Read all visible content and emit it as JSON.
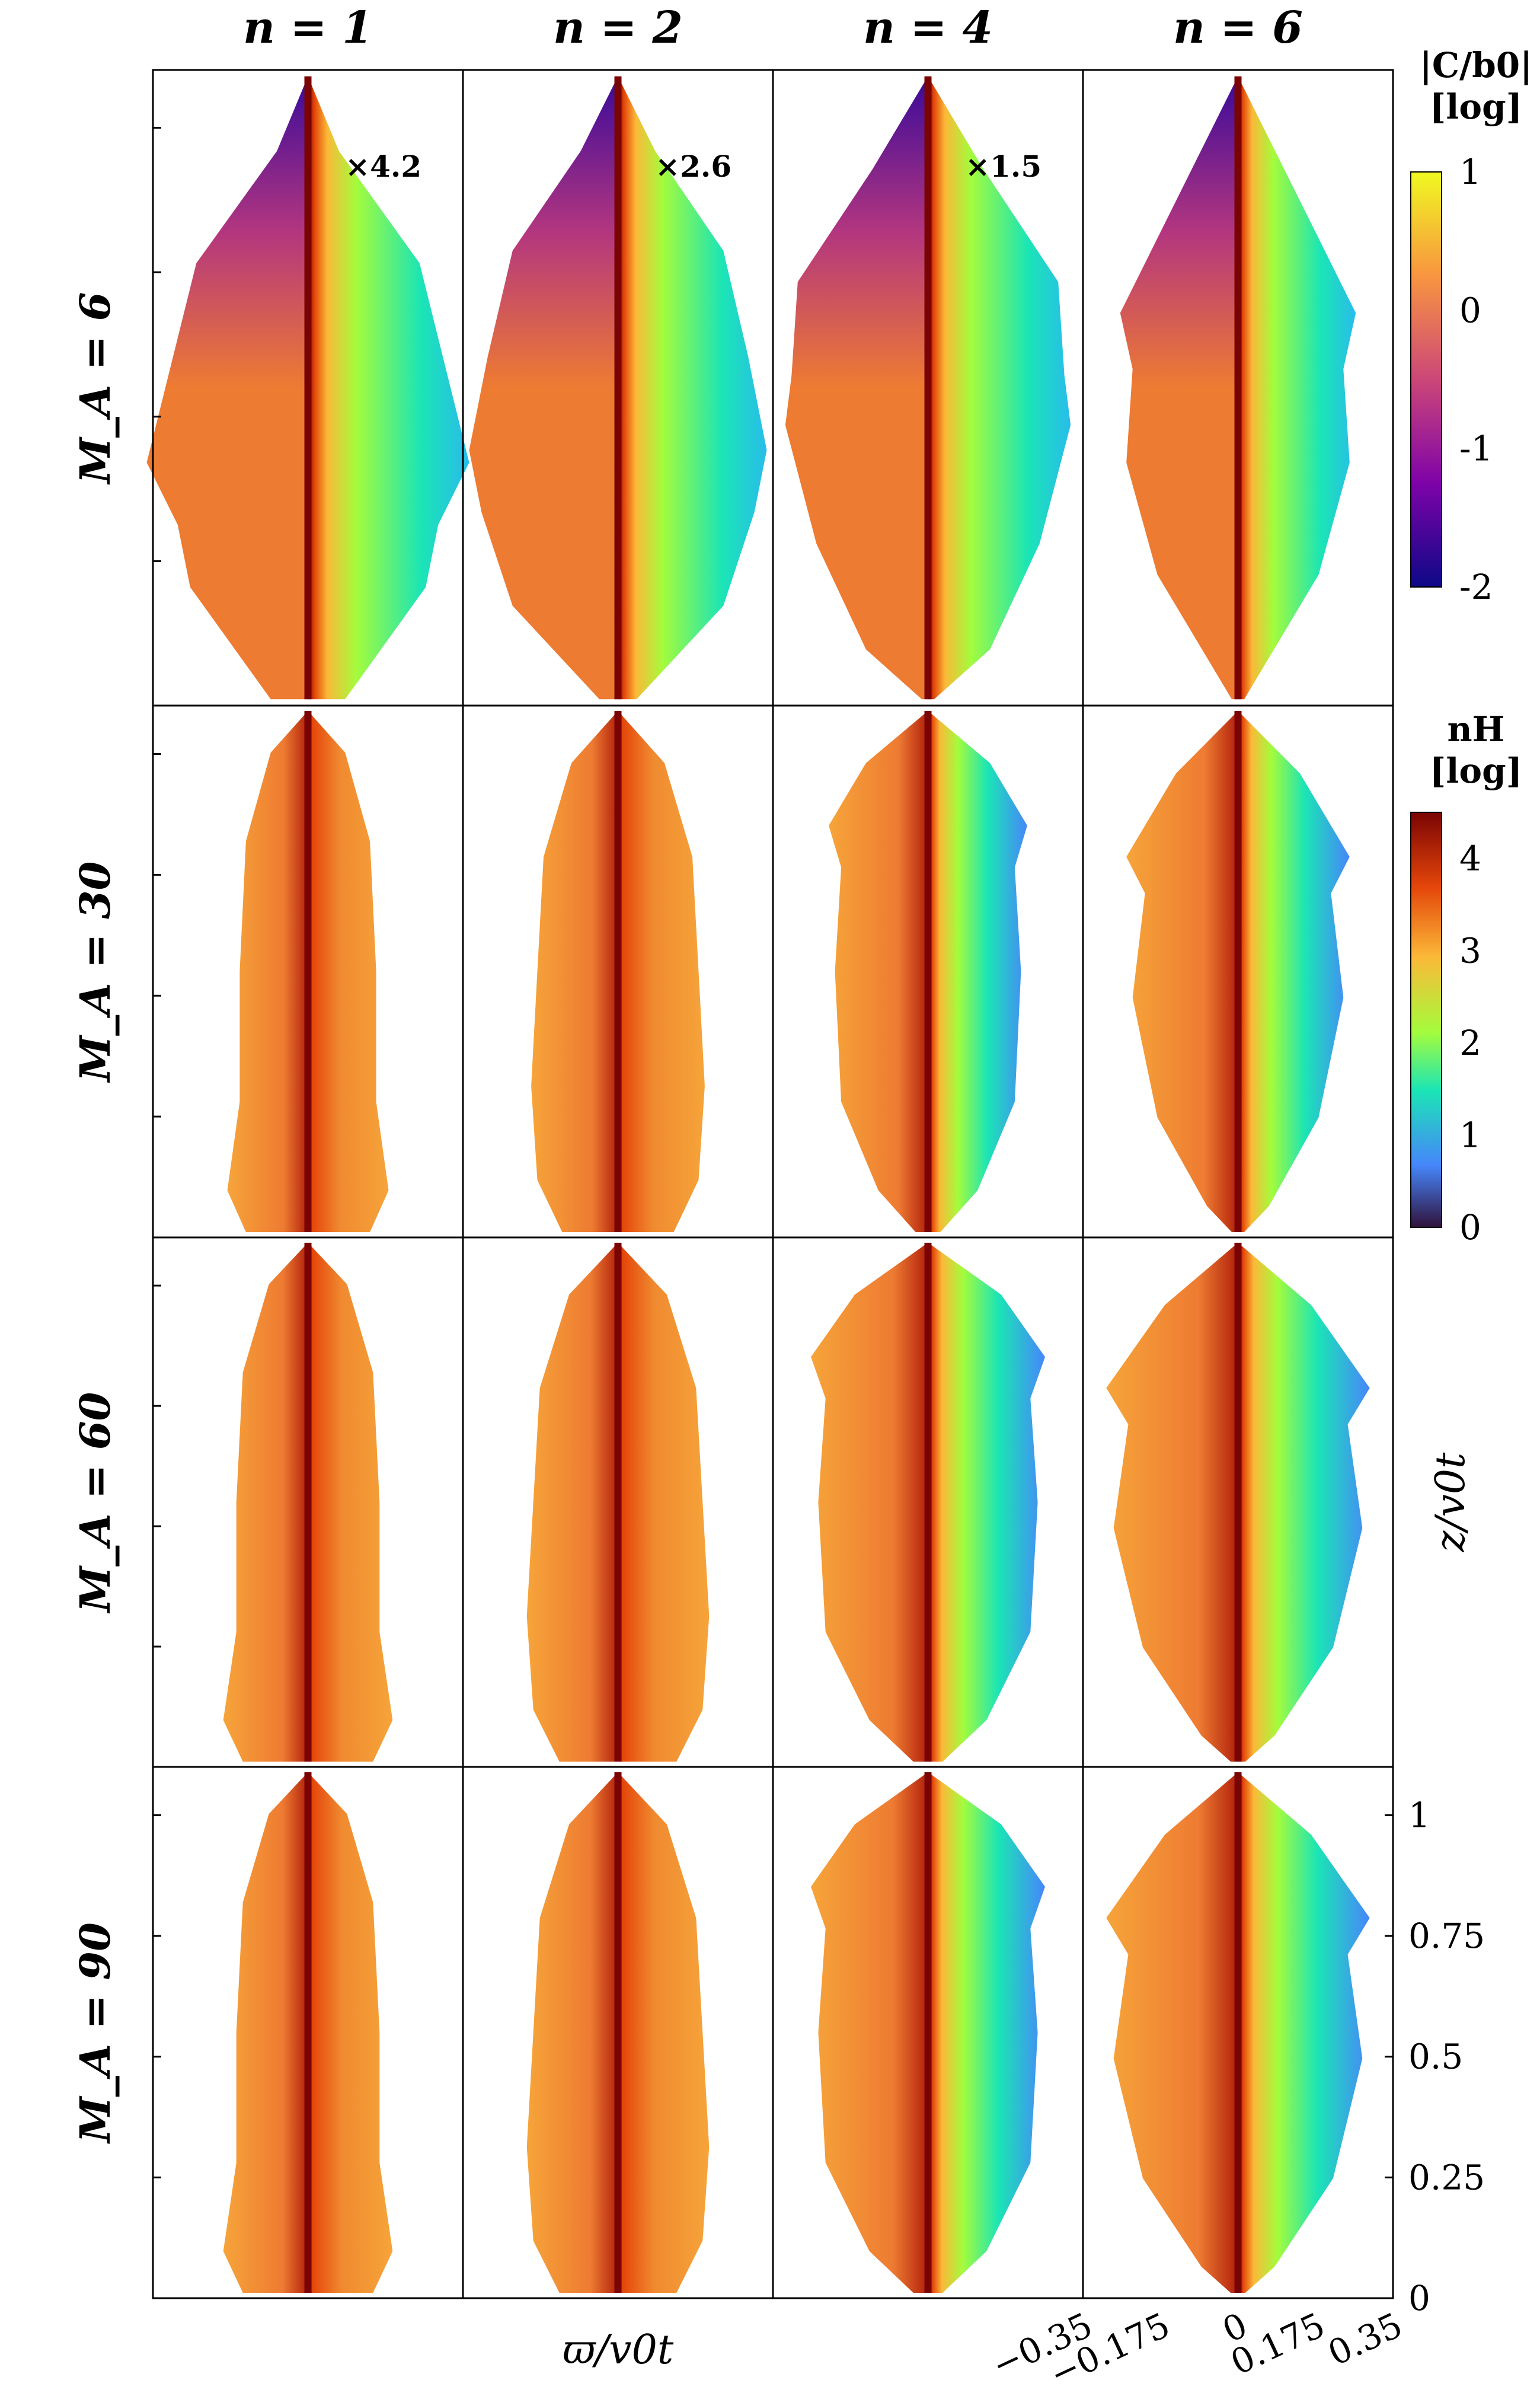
{
  "chart_data": {
    "type": "heatmap",
    "description_layout": "4x4 grid of paired half-maps",
    "columns": [
      {
        "label": "n = 1",
        "n": 1,
        "scale": "×4.2"
      },
      {
        "label": "n = 2",
        "n": 2,
        "scale": "×2.6"
      },
      {
        "label": "n = 4",
        "n": 4,
        "scale": "×1.5"
      },
      {
        "label": "n = 6",
        "n": 6,
        "scale": ""
      }
    ],
    "rows": [
      {
        "label": "M_A = 6",
        "M_A": 6,
        "quantity": "|C/b0|"
      },
      {
        "label": "M_A = 30",
        "M_A": 30,
        "quantity": "n_H"
      },
      {
        "label": "M_A = 60",
        "M_A": 60,
        "quantity": "n_H"
      },
      {
        "label": "M_A = 90",
        "M_A": 90,
        "quantity": "n_H"
      }
    ],
    "xlabel": "ϖ/v0t",
    "ylabel": "z/v0t",
    "xlim": [
      -0.35,
      0.35
    ],
    "ylim": [
      0,
      1.1
    ],
    "xticks": [
      "−0.35",
      "−0.175",
      "0",
      "0.175",
      "0.35"
    ],
    "yticks": [
      "0",
      "0.25",
      "0.5",
      "0.75",
      "1"
    ],
    "colorbars": [
      {
        "title_line1": "|C/b0|",
        "title_line2": "[log]",
        "ticks": [
          "1",
          "0",
          "-1",
          "-2"
        ],
        "range": [
          -2,
          1
        ],
        "colormap": "plasma"
      },
      {
        "title_line1": "nH",
        "title_line2": "[log]",
        "ticks": [
          "4",
          "3",
          "2",
          "1",
          "0"
        ],
        "range": [
          0,
          4.5
        ],
        "colormap": "turbo"
      }
    ]
  },
  "text": {
    "col_n": "n",
    "eq": "=",
    "row_M": "M",
    "row_sub": "A",
    "cb1_line1": "|C/b0|",
    "cb1_line2": "[log]",
    "cb2_line1": "nH",
    "cb2_line2": "[log]",
    "xlabel": "ϖ/v0t",
    "ylabel": "z/v0t"
  },
  "colors": {
    "plasma_low": "#0d0887",
    "plasma_mid1": "#7e03a8",
    "plasma_mid2": "#cc4778",
    "plasma_mid3": "#f89540",
    "plasma_high": "#f0f921",
    "turbo_0": "#30123b",
    "turbo_1": "#4686fb",
    "turbo_2": "#1be5b5",
    "turbo_3": "#a4fc3c",
    "turbo_4": "#fbb938",
    "turbo_5": "#e4460a",
    "turbo_6": "#7a0403",
    "left_half_orange": "#ee7b32",
    "axis": "#000000"
  }
}
